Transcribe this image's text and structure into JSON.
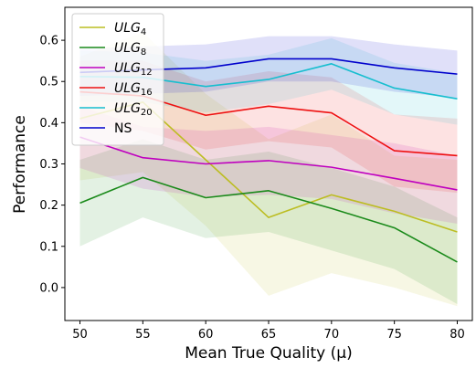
{
  "chart_data": {
    "type": "line",
    "xlabel": "Mean True Quality (μ)",
    "ylabel": "Performance",
    "x": [
      50,
      55,
      60,
      65,
      70,
      75,
      80
    ],
    "xlim": [
      48.8,
      81.2
    ],
    "ylim": [
      -0.08,
      0.68
    ],
    "xticks": [
      "50",
      "55",
      "60",
      "65",
      "70",
      "75",
      "80"
    ],
    "yticks": [
      "0.0",
      "0.1",
      "0.2",
      "0.3",
      "0.4",
      "0.5",
      "0.6"
    ],
    "ytick_values": [
      0.0,
      0.1,
      0.2,
      0.3,
      0.4,
      0.5,
      0.6
    ],
    "grid": false,
    "legend_position": "top-left",
    "series": [
      {
        "name": "ULG",
        "subscript": "4",
        "italic": true,
        "color": "#bcbd22",
        "values": [
          0.41,
          0.45,
          0.31,
          0.17,
          0.225,
          0.185,
          0.135
        ],
        "upper": [
          0.56,
          0.62,
          0.47,
          0.36,
          0.42,
          0.32,
          0.31
        ],
        "lower": [
          0.26,
          0.28,
          0.15,
          -0.02,
          0.035,
          0.0,
          -0.045
        ]
      },
      {
        "name": "ULG",
        "subscript": "8",
        "italic": true,
        "color": "#1a8a1a",
        "values": [
          0.205,
          0.267,
          0.218,
          0.235,
          0.192,
          0.145,
          0.062
        ],
        "upper": [
          0.31,
          0.36,
          0.31,
          0.33,
          0.29,
          0.245,
          0.17
        ],
        "lower": [
          0.1,
          0.17,
          0.12,
          0.135,
          0.09,
          0.045,
          -0.04
        ]
      },
      {
        "name": "ULG",
        "subscript": "12",
        "italic": true,
        "color": "#bf00bf",
        "values": [
          0.365,
          0.315,
          0.3,
          0.308,
          0.292,
          0.265,
          0.237
        ],
        "upper": [
          0.44,
          0.39,
          0.38,
          0.39,
          0.37,
          0.35,
          0.32
        ],
        "lower": [
          0.29,
          0.24,
          0.22,
          0.225,
          0.215,
          0.18,
          0.155
        ]
      },
      {
        "name": "ULG",
        "subscript": "16",
        "italic": true,
        "color": "#ee1111",
        "values": [
          0.475,
          0.465,
          0.418,
          0.44,
          0.424,
          0.332,
          0.32
        ],
        "upper": [
          0.55,
          0.55,
          0.5,
          0.525,
          0.51,
          0.42,
          0.41
        ],
        "lower": [
          0.4,
          0.38,
          0.335,
          0.355,
          0.34,
          0.245,
          0.23
        ]
      },
      {
        "name": "ULG",
        "subscript": "20",
        "italic": true,
        "color": "#17becf",
        "values": [
          0.512,
          0.51,
          0.488,
          0.505,
          0.543,
          0.484,
          0.458
        ],
        "upper": [
          0.575,
          0.57,
          0.55,
          0.565,
          0.605,
          0.545,
          0.52
        ],
        "lower": [
          0.45,
          0.45,
          0.425,
          0.445,
          0.48,
          0.42,
          0.395
        ]
      },
      {
        "name": "NS",
        "subscript": "",
        "italic": false,
        "color": "#0000cc",
        "values": [
          0.522,
          0.528,
          0.533,
          0.555,
          0.555,
          0.533,
          0.518
        ],
        "upper": [
          0.58,
          0.585,
          0.59,
          0.61,
          0.61,
          0.59,
          0.575
        ],
        "lower": [
          0.465,
          0.47,
          0.475,
          0.5,
          0.5,
          0.475,
          0.46
        ]
      }
    ]
  }
}
